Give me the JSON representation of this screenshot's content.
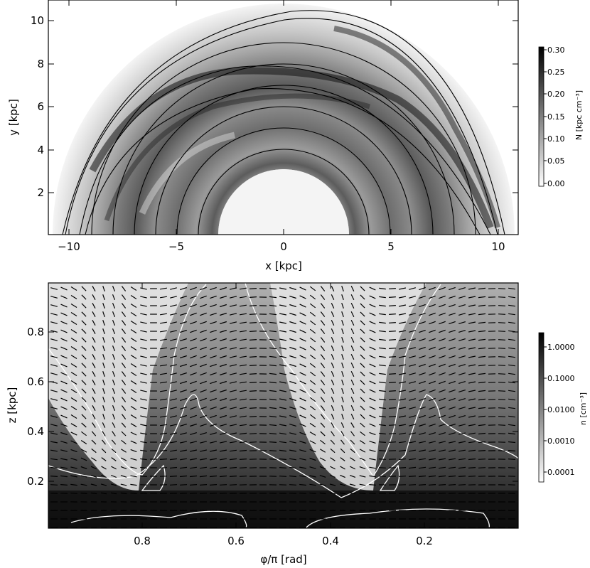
{
  "top_panel": {
    "xlabel": "x [kpc]",
    "ylabel": "y [kpc]",
    "xticks": [
      "−10",
      "−5",
      "0",
      "5",
      "10"
    ],
    "yticks": [
      "2",
      "4",
      "6",
      "8",
      "10"
    ],
    "colorbar": {
      "label": "N [kpc cm⁻³]",
      "ticks": [
        "0.30",
        "0.25",
        "0.20",
        "0.15",
        "0.10",
        "0.05",
        "0.00"
      ]
    }
  },
  "bottom_panel": {
    "xlabel": "φ/π [rad]",
    "ylabel": "z [kpc]",
    "xticks": [
      "0.8",
      "0.6",
      "0.4",
      "0.2"
    ],
    "yticks": [
      "0.2",
      "0.4",
      "0.6",
      "0.8"
    ],
    "colorbar": {
      "label": "n [cm⁻³]",
      "ticks": [
        "1.0000",
        "0.1000",
        "0.0100",
        "0.0010",
        "0.0001"
      ]
    }
  },
  "chart_data": [
    {
      "type": "heatmap",
      "xlabel": "x [kpc]",
      "ylabel": "y [kpc]",
      "xlim": [
        -11,
        11
      ],
      "ylim": [
        0,
        10.9
      ],
      "colorbar_label": "N [kpc cm⁻³]",
      "colorbar_range": [
        0.0,
        0.3
      ],
      "inner_radius": 3,
      "outer_radius": 10.8,
      "field_line_radii": [
        4,
        5,
        6,
        7,
        8,
        9,
        10.3
      ]
    },
    {
      "type": "heatmap",
      "xlabel": "φ/π [rad]",
      "ylabel": "z [kpc]",
      "xlim": [
        1.0,
        0.0
      ],
      "ylim": [
        0.0,
        1.0
      ],
      "colorbar_label": "n [cm⁻³]",
      "colorbar_scale": "log",
      "colorbar_range": [
        0.0001,
        1.0
      ]
    }
  ]
}
